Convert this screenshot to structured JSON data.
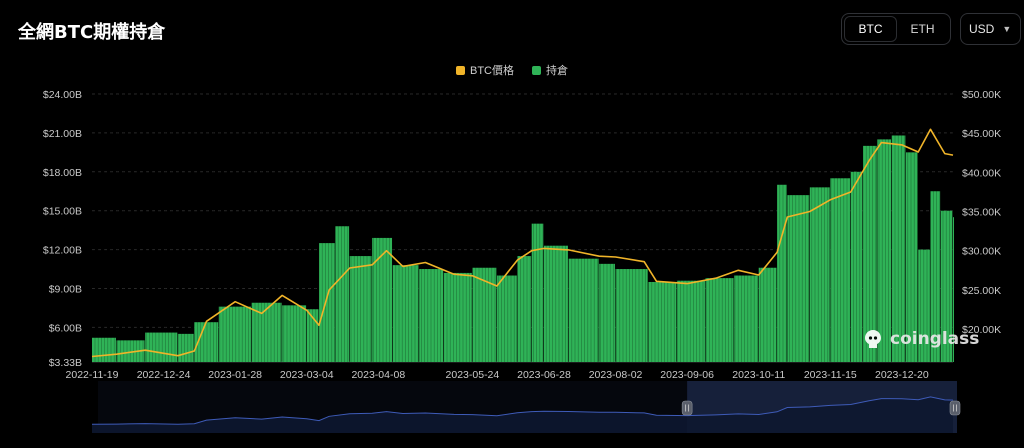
{
  "header": {
    "title": "全網BTC期權持倉",
    "coin_options": [
      "BTC",
      "ETH"
    ],
    "selected_coin": "BTC",
    "currency": "USD"
  },
  "watermark": "coinglass",
  "colors": {
    "price": "#f0b429",
    "oi": "#2fb357",
    "grid": "#2a2a2a",
    "axis_text": "#c9c9c9",
    "navigator_line": "#3e5bb8",
    "navigator_fill": "#0d1730",
    "navigator_selection": "#16203a"
  },
  "chart_data": {
    "type": "bar",
    "legend": [
      "BTC價格",
      "持倉"
    ],
    "x_ticks": [
      "2022-11-19",
      "2022-12-24",
      "2023-01-28",
      "2023-03-04",
      "2023-04-08",
      "2023-05-24",
      "2023-06-28",
      "2023-08-02",
      "2023-09-06",
      "2023-10-11",
      "2023-11-15",
      "2023-12-20"
    ],
    "y_left_ticks": [
      "$3.33B",
      "$6.00B",
      "$9.00B",
      "$12.00B",
      "$15.00B",
      "$18.00B",
      "$21.00B",
      "$24.00B"
    ],
    "y_right_ticks": [
      "$20.00K",
      "$25.00K",
      "$30.00K",
      "$35.00K",
      "$40.00K",
      "$45.00K",
      "$50.00K"
    ],
    "y_left_range": [
      3.33,
      24.0
    ],
    "y_right_range": [
      15800,
      50000
    ],
    "x_range": [
      "2022-11-19",
      "2024-01-14"
    ],
    "series": [
      {
        "name": "持倉",
        "unit": "B USD",
        "x": [
          "2022-11-19",
          "2022-12-01",
          "2022-12-15",
          "2022-12-31",
          "2023-01-08",
          "2023-01-20",
          "2023-02-05",
          "2023-02-20",
          "2023-03-04",
          "2023-03-10",
          "2023-03-18",
          "2023-03-25",
          "2023-04-05",
          "2023-04-15",
          "2023-04-28",
          "2023-05-10",
          "2023-05-24",
          "2023-06-05",
          "2023-06-15",
          "2023-06-22",
          "2023-06-28",
          "2023-07-10",
          "2023-07-25",
          "2023-08-02",
          "2023-08-18",
          "2023-09-01",
          "2023-09-15",
          "2023-09-29",
          "2023-10-11",
          "2023-10-20",
          "2023-10-25",
          "2023-11-05",
          "2023-11-15",
          "2023-11-25",
          "2023-12-01",
          "2023-12-08",
          "2023-12-15",
          "2023-12-22",
          "2023-12-28",
          "2024-01-03",
          "2024-01-08",
          "2024-01-14"
        ],
        "values": [
          5.2,
          5.0,
          5.6,
          5.5,
          6.4,
          7.6,
          7.9,
          7.7,
          7.4,
          12.5,
          13.8,
          11.5,
          12.9,
          10.8,
          10.5,
          10.2,
          10.6,
          10.0,
          11.5,
          14.0,
          12.3,
          11.3,
          10.9,
          10.5,
          9.5,
          9.6,
          9.8,
          10.0,
          10.6,
          17.0,
          16.2,
          16.8,
          17.5,
          18.0,
          20.0,
          20.5,
          20.8,
          19.5,
          12.0,
          16.5,
          15.0,
          14.5
        ]
      },
      {
        "name": "BTC價格",
        "unit": "USD",
        "x": [
          "2022-11-19",
          "2022-12-01",
          "2022-12-15",
          "2022-12-31",
          "2023-01-08",
          "2023-01-14",
          "2023-01-28",
          "2023-02-10",
          "2023-02-20",
          "2023-03-04",
          "2023-03-10",
          "2023-03-15",
          "2023-03-25",
          "2023-04-05",
          "2023-04-12",
          "2023-04-20",
          "2023-05-01",
          "2023-05-15",
          "2023-05-24",
          "2023-06-05",
          "2023-06-15",
          "2023-06-22",
          "2023-06-28",
          "2023-07-10",
          "2023-07-25",
          "2023-08-02",
          "2023-08-16",
          "2023-08-22",
          "2023-09-06",
          "2023-09-20",
          "2023-10-01",
          "2023-10-11",
          "2023-10-20",
          "2023-10-25",
          "2023-11-05",
          "2023-11-15",
          "2023-11-25",
          "2023-12-04",
          "2023-12-10",
          "2023-12-20",
          "2023-12-28",
          "2024-01-03",
          "2024-01-10",
          "2024-01-14"
        ],
        "values": [
          16500,
          16800,
          17300,
          16600,
          17200,
          21000,
          23500,
          22000,
          24300,
          22400,
          20500,
          25000,
          27800,
          28200,
          30000,
          28000,
          28500,
          27000,
          26800,
          25500,
          28800,
          30000,
          30300,
          30100,
          29300,
          29200,
          28600,
          26100,
          25800,
          26500,
          27500,
          26900,
          29800,
          34300,
          35000,
          36500,
          37500,
          41500,
          43800,
          43500,
          42600,
          45500,
          42400,
          42200
        ]
      }
    ]
  }
}
